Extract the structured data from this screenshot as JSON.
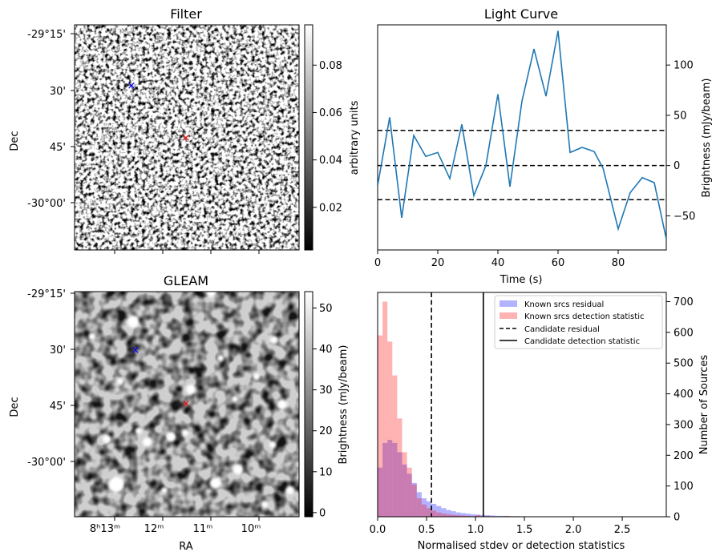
{
  "chart_data": [
    {
      "type": "image",
      "title": "Filter",
      "ylabel": "Dec",
      "ytick_labels": [
        "-29°15'",
        "30'",
        "45'",
        "-30°00'"
      ],
      "colorbar": {
        "label": "arbitrary units",
        "ticks": [
          0.02,
          0.04,
          0.06,
          0.08
        ],
        "tick_labels": [
          "0.02",
          "0.04",
          "0.06",
          "0.08"
        ],
        "range": [
          0.002,
          0.097
        ]
      },
      "markers": [
        {
          "name": "blue-x",
          "color": "#0000ff"
        },
        {
          "name": "red-x",
          "color": "#ff0000"
        }
      ]
    },
    {
      "type": "line",
      "title": "Light Curve",
      "xlabel": "Time (s)",
      "ylabel": "Brightness (mJy/beam)",
      "xlim": [
        0,
        96
      ],
      "ylim": [
        -84,
        140
      ],
      "xticks": [
        0,
        20,
        40,
        60,
        80
      ],
      "yticks": [
        -50,
        0,
        50,
        100
      ],
      "series": [
        {
          "name": "light-curve",
          "color": "#1f77b4",
          "x": [
            0,
            4,
            8,
            12,
            16,
            20,
            24,
            28,
            32,
            36,
            40,
            44,
            48,
            52,
            56,
            60,
            64,
            68,
            72,
            75,
            80,
            84,
            88,
            92,
            96
          ],
          "y": [
            -20,
            48,
            -52,
            30,
            9,
            13,
            -13,
            41,
            -30,
            0,
            71,
            -21,
            64,
            116,
            69,
            134,
            13,
            18,
            14,
            -3,
            -63,
            -27,
            -12,
            -17,
            -73
          ]
        }
      ],
      "hlines": [
        35,
        0,
        -34
      ]
    },
    {
      "type": "image",
      "title": "GLEAM",
      "xlabel": "RA",
      "ylabel": "Dec",
      "xtick_labels": [
        "8ʰ13ᵐ",
        "12ᵐ",
        "11ᵐ",
        "10ᵐ"
      ],
      "ytick_labels": [
        "-29°15'",
        "30'",
        "45'",
        "-30°00'"
      ],
      "colorbar": {
        "label": "Brightness (mJy/beam)",
        "ticks": [
          0,
          10,
          20,
          30,
          40,
          50
        ],
        "tick_labels": [
          "0",
          "10",
          "20",
          "30",
          "40",
          "50"
        ],
        "range": [
          -1,
          54
        ]
      },
      "markers": [
        {
          "name": "blue-x",
          "color": "#0000ff"
        },
        {
          "name": "red-x",
          "color": "#ff0000"
        }
      ]
    },
    {
      "type": "histogram",
      "xlabel": "Normalised stdev or detection statistics",
      "ylabel": "Number of Sources",
      "xlim": [
        0,
        2.95
      ],
      "ylim": [
        0,
        730
      ],
      "xticks": [
        0,
        0.5,
        1,
        1.5,
        2,
        2.5
      ],
      "yticks": [
        0,
        100,
        200,
        300,
        400,
        500,
        600,
        700
      ],
      "bin_width": 0.05,
      "series": [
        {
          "name": "Known srcs residual",
          "color": "#0000ff",
          "alpha": 0.3,
          "values": [
            160,
            240,
            250,
            240,
            210,
            170,
            140,
            110,
            80,
            60,
            50,
            42,
            35,
            28,
            22,
            18,
            14,
            12,
            10,
            8,
            7,
            6,
            5,
            4,
            3,
            3,
            2,
            2,
            2,
            1
          ]
        },
        {
          "name": "Known srcs detection statistic",
          "color": "#ff0000",
          "alpha": 0.3,
          "values": [
            590,
            700,
            570,
            460,
            320,
            210,
            160,
            105,
            60,
            40,
            28,
            20,
            14,
            10,
            8,
            6,
            5,
            4,
            3,
            2,
            5,
            2,
            2,
            1,
            1,
            1,
            3,
            1,
            1,
            1,
            1,
            1,
            1,
            1,
            1,
            0,
            0,
            0,
            1,
            1,
            0,
            0,
            0,
            0,
            0,
            0,
            0,
            0,
            0,
            0,
            0,
            0,
            0,
            0,
            1
          ]
        }
      ],
      "vlines": [
        {
          "name": "Candidate residual",
          "x": 0.55,
          "style": "dashed"
        },
        {
          "name": "Candidate detection statistic",
          "x": 1.08,
          "style": "solid"
        }
      ],
      "legend": {
        "position": "top-right",
        "items": [
          "Known srcs residual",
          "Known srcs detection statistic",
          "Candidate residual",
          "Candidate detection statistic"
        ]
      }
    }
  ]
}
